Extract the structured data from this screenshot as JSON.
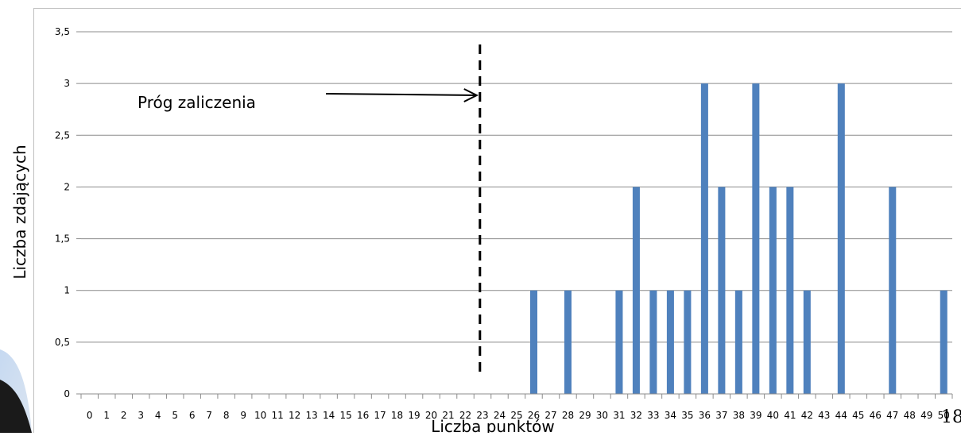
{
  "chart_data": {
    "type": "bar",
    "title": "",
    "xlabel": "Liczba punktów",
    "ylabel": "Liczba zdających",
    "ylim": [
      0,
      3.5
    ],
    "yticks": [
      "0",
      "0,5",
      "1",
      "1,5",
      "2",
      "2,5",
      "3",
      "3,5"
    ],
    "categories": [
      "0",
      "1",
      "2",
      "3",
      "4",
      "5",
      "6",
      "7",
      "8",
      "9",
      "10",
      "11",
      "12",
      "13",
      "14",
      "15",
      "16",
      "17",
      "18",
      "19",
      "20",
      "21",
      "22",
      "23",
      "24",
      "25",
      "26",
      "27",
      "28",
      "29",
      "30",
      "31",
      "32",
      "33",
      "34",
      "35",
      "36",
      "37",
      "38",
      "39",
      "40",
      "41",
      "42",
      "43",
      "44",
      "45",
      "46",
      "47",
      "48",
      "49",
      "50"
    ],
    "values": [
      0,
      0,
      0,
      0,
      0,
      0,
      0,
      0,
      0,
      0,
      0,
      0,
      0,
      0,
      0,
      0,
      0,
      0,
      0,
      0,
      0,
      0,
      0,
      0,
      0,
      0,
      1,
      0,
      1,
      0,
      0,
      1,
      2,
      1,
      1,
      1,
      3,
      2,
      1,
      3,
      2,
      2,
      1,
      0,
      3,
      0,
      0,
      2,
      0,
      0,
      1
    ],
    "grid": true,
    "bar_color": "#4f81bd",
    "annotation": {
      "text": "Próg zaliczenia",
      "threshold_x": 23
    }
  },
  "page_number": "18"
}
